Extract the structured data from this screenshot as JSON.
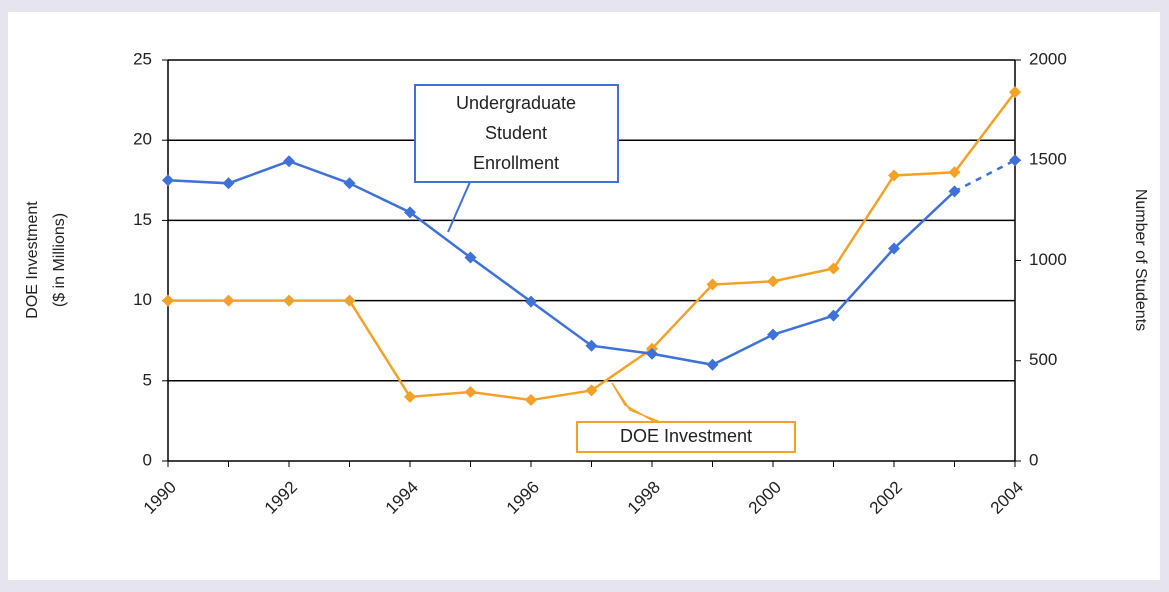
{
  "chart_data": {
    "type": "line",
    "x": [
      1990,
      1991,
      1992,
      1993,
      1994,
      1995,
      1996,
      1997,
      1998,
      1999,
      2000,
      2001,
      2002,
      2003,
      2004
    ],
    "xlim": [
      1990,
      2004
    ],
    "xticks": [
      1990,
      1992,
      1994,
      1996,
      1998,
      2000,
      2002,
      2004
    ],
    "ylim": [
      0,
      25
    ],
    "yticks": [
      0,
      5,
      10,
      15,
      20,
      25
    ],
    "y2lim": [
      0,
      2000
    ],
    "y2ticks": [
      0,
      500,
      1000,
      1500,
      2000
    ],
    "ylabel": [
      "DOE Investment",
      "($ in Millions)"
    ],
    "y2label": "Number of Students",
    "grid": true,
    "series": [
      {
        "name": "DOE Investment",
        "color": "#f5a127",
        "values": [
          10,
          10,
          10,
          10,
          4,
          4.3,
          3.8,
          4.4,
          7,
          11,
          11.2,
          12,
          17.8,
          18,
          23
        ]
      },
      {
        "name": "Undergraduate Student Enrollment",
        "color": "#3f72d8",
        "axis": "y2",
        "last_segment": "dashed",
        "values": [
          1400,
          1385,
          1495,
          1385,
          1240,
          1015,
          795,
          575,
          535,
          480,
          630,
          725,
          1060,
          1345,
          1500
        ]
      }
    ],
    "annotations": [
      {
        "lines": [
          "Undergraduate",
          "Student",
          "Enrollment"
        ],
        "color": "#3f72d8"
      },
      {
        "lines": [
          "DOE Investment"
        ],
        "color": "#f5a127"
      }
    ]
  }
}
